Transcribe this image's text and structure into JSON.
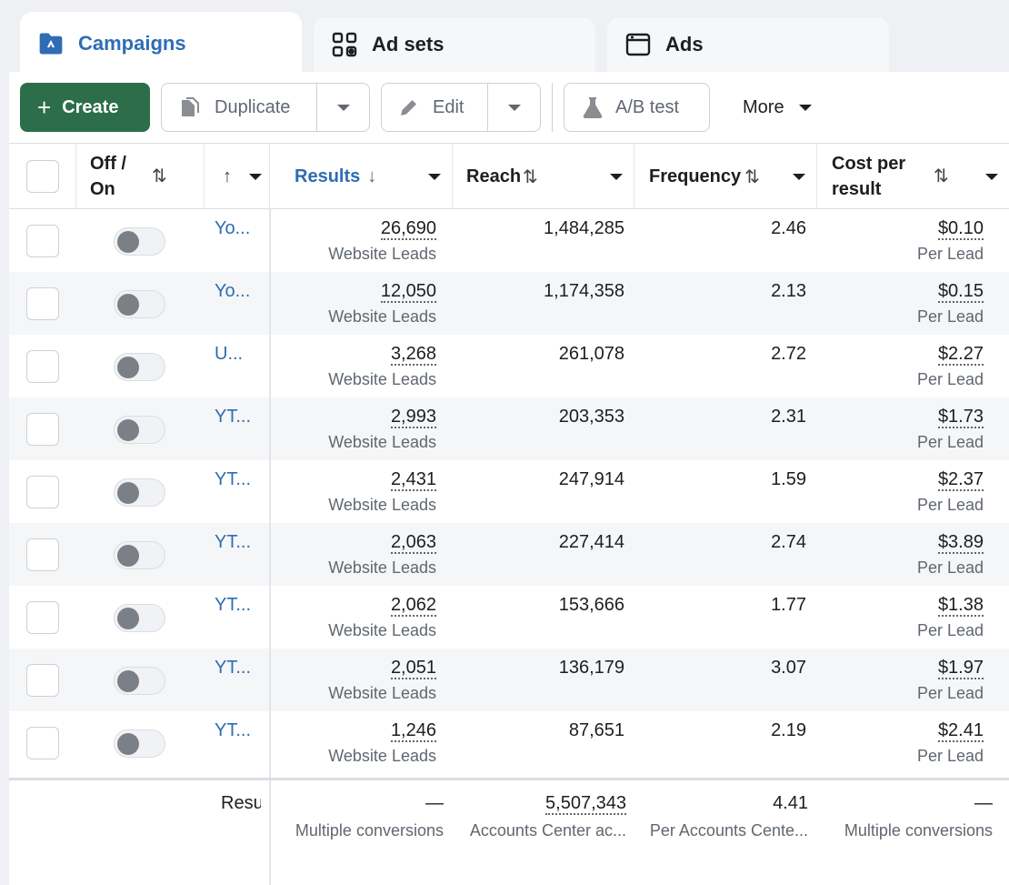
{
  "tabs": [
    {
      "label": "Campaigns",
      "icon": "campaign-folder-icon",
      "active": true
    },
    {
      "label": "Ad sets",
      "icon": "grid-icon",
      "active": false
    },
    {
      "label": "Ads",
      "icon": "window-icon",
      "active": false
    }
  ],
  "toolbar": {
    "create_label": "Create",
    "duplicate_label": "Duplicate",
    "edit_label": "Edit",
    "ab_test_label": "A/B test",
    "more_label": "More"
  },
  "columns": {
    "toggle": "Off / On",
    "results": "Results",
    "reach": "Reach",
    "frequency": "Frequency",
    "cost": "Cost per result"
  },
  "rows": [
    {
      "name": "Yo...",
      "results": "26,690",
      "results_sub": "Website Leads",
      "reach": "1,484,285",
      "frequency": "2.46",
      "cost": "$0.10",
      "cost_sub": "Per Lead"
    },
    {
      "name": "Yo...",
      "results": "12,050",
      "results_sub": "Website Leads",
      "reach": "1,174,358",
      "frequency": "2.13",
      "cost": "$0.15",
      "cost_sub": "Per Lead"
    },
    {
      "name": "U...",
      "results": "3,268",
      "results_sub": "Website Leads",
      "reach": "261,078",
      "frequency": "2.72",
      "cost": "$2.27",
      "cost_sub": "Per Lead"
    },
    {
      "name": "YT...",
      "results": "2,993",
      "results_sub": "Website Leads",
      "reach": "203,353",
      "frequency": "2.31",
      "cost": "$1.73",
      "cost_sub": "Per Lead"
    },
    {
      "name": "YT...",
      "results": "2,431",
      "results_sub": "Website Leads",
      "reach": "247,914",
      "frequency": "1.59",
      "cost": "$2.37",
      "cost_sub": "Per Lead"
    },
    {
      "name": "YT...",
      "results": "2,063",
      "results_sub": "Website Leads",
      "reach": "227,414",
      "frequency": "2.74",
      "cost": "$3.89",
      "cost_sub": "Per Lead"
    },
    {
      "name": "YT...",
      "results": "2,062",
      "results_sub": "Website Leads",
      "reach": "153,666",
      "frequency": "1.77",
      "cost": "$1.38",
      "cost_sub": "Per Lead"
    },
    {
      "name": "YT...",
      "results": "2,051",
      "results_sub": "Website Leads",
      "reach": "136,179",
      "frequency": "3.07",
      "cost": "$1.97",
      "cost_sub": "Per Lead"
    },
    {
      "name": "YT...",
      "results": "1,246",
      "results_sub": "Website Leads",
      "reach": "87,651",
      "frequency": "2.19",
      "cost": "$2.41",
      "cost_sub": "Per Lead"
    }
  ],
  "totals": {
    "label": "Resu",
    "results": "—",
    "results_sub": "Multiple conversions",
    "reach": "5,507,343",
    "reach_sub": "Accounts Center ac...",
    "frequency": "4.41",
    "frequency_sub": "Per Accounts Cente...",
    "cost": "—",
    "cost_sub": "Multiple conversions"
  },
  "colors": {
    "accent": "#2e6db4",
    "create": "#2c6e49"
  }
}
